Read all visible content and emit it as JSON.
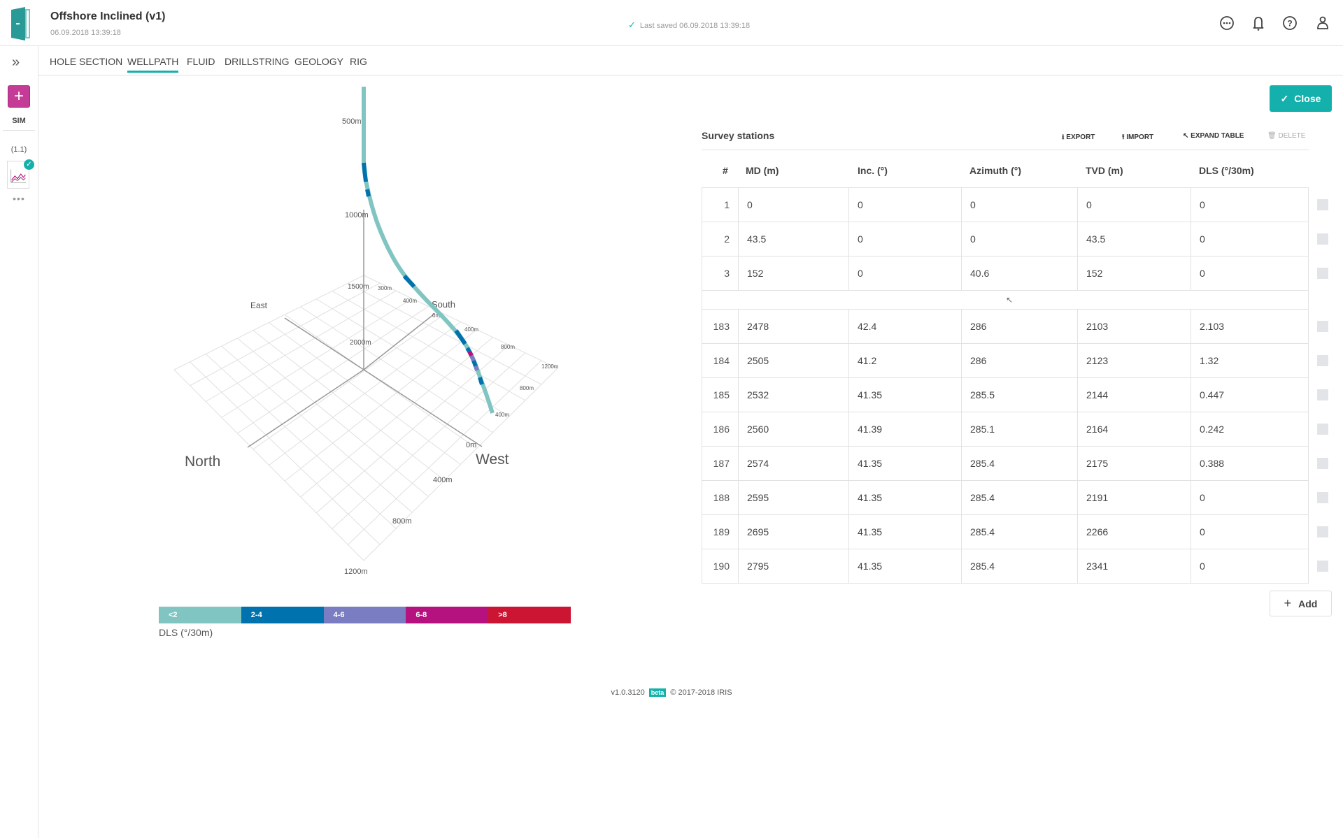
{
  "header": {
    "title": "Offshore Inclined (v1)",
    "date": "06.09.2018 13:39:18",
    "saved": "Last saved 06.09.2018 13:39:18",
    "icons": [
      "more-icon",
      "bell-icon",
      "help-icon",
      "user-icon"
    ]
  },
  "sidebar": {
    "sim_label": "SIM",
    "version": "(1.1)",
    "more": "•••"
  },
  "tabs": [
    "HOLE SECTION",
    "WELLPATH",
    "FLUID",
    "DRILLSTRING",
    "GEOLOGY",
    "RIG"
  ],
  "active_tab": "WELLPATH",
  "close_label": "Close",
  "survey": {
    "title": "Survey stations",
    "actions": {
      "export": "EXPORT",
      "import": "IMPORT",
      "expand": "EXPAND TABLE",
      "delete": "DELETE"
    },
    "columns": [
      "#",
      "MD (m)",
      "Inc. (°)",
      "Azimuth (°)",
      "TVD (m)",
      "DLS (°/30m)"
    ],
    "rows_top": [
      [
        "1",
        "0",
        "0",
        "0",
        "0",
        "0"
      ],
      [
        "2",
        "43.5",
        "0",
        "0",
        "43.5",
        "0"
      ],
      [
        "3",
        "152",
        "0",
        "40.6",
        "152",
        "0"
      ]
    ],
    "gap_symbol": "↖",
    "rows_bottom": [
      [
        "183",
        "2478",
        "42.4",
        "286",
        "2103",
        "2.103"
      ],
      [
        "184",
        "2505",
        "41.2",
        "286",
        "2123",
        "1.32"
      ],
      [
        "185",
        "2532",
        "41.35",
        "285.5",
        "2144",
        "0.447"
      ],
      [
        "186",
        "2560",
        "41.39",
        "285.1",
        "2164",
        "0.242"
      ],
      [
        "187",
        "2574",
        "41.35",
        "285.4",
        "2175",
        "0.388"
      ],
      [
        "188",
        "2595",
        "41.35",
        "285.4",
        "2191",
        "0"
      ],
      [
        "189",
        "2695",
        "41.35",
        "285.4",
        "2266",
        "0"
      ],
      [
        "190",
        "2795",
        "41.35",
        "285.4",
        "2341",
        "0"
      ]
    ],
    "add_label": "Add"
  },
  "plot": {
    "depth_labels": [
      "500m",
      "1000m",
      "1500m",
      "2000m"
    ],
    "directions": {
      "north": "North",
      "east": "East",
      "south": "South",
      "west": "West"
    },
    "axis_labels": {
      "a": "300m",
      "b": "400m",
      "c": "0m",
      "d": "400m",
      "e": "800m",
      "f": "1200m",
      "g": "800m",
      "h": "400m",
      "i": "0m",
      "j": "400m",
      "k": "800m",
      "l": "1200m"
    }
  },
  "legend": {
    "title": "DLS (°/30m)",
    "bins": [
      {
        "label": "<2",
        "color": "#80c5c2"
      },
      {
        "label": "2-4",
        "color": "#0072ad"
      },
      {
        "label": "4-6",
        "color": "#7b7dc2"
      },
      {
        "label": "6-8",
        "color": "#b5127f"
      },
      {
        "label": ">8",
        "color": "#cc1433"
      }
    ]
  },
  "footer": {
    "version": "v1.0.3120",
    "badge": "beta",
    "copyright": "© 2017-2018 IRIS"
  }
}
